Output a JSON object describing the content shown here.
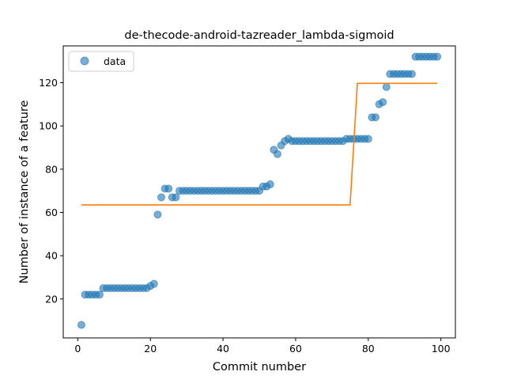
{
  "chart_data": {
    "type": "scatter",
    "title": "de-thecode-android-tazreader_lambda-sigmoid",
    "xlabel": "Commit number",
    "ylabel": "Number of instance of a feature",
    "xlim": [
      -4,
      104
    ],
    "ylim": [
      2,
      137
    ],
    "xticks": [
      0,
      20,
      40,
      60,
      80,
      100
    ],
    "yticks": [
      20,
      40,
      60,
      80,
      100,
      120
    ],
    "grid": false,
    "legend": {
      "position": "upper-left",
      "entries": [
        "data"
      ]
    },
    "colors": {
      "data": "#1f77b4",
      "fit": "#ff7f0e"
    },
    "series": [
      {
        "name": "data",
        "type": "scatter",
        "x": [
          1,
          2,
          3,
          4,
          5,
          6,
          7,
          8,
          9,
          10,
          11,
          12,
          13,
          14,
          15,
          16,
          17,
          18,
          19,
          20,
          21,
          22,
          23,
          24,
          25,
          26,
          27,
          28,
          29,
          30,
          31,
          32,
          33,
          34,
          35,
          36,
          37,
          38,
          39,
          40,
          41,
          42,
          43,
          44,
          45,
          46,
          47,
          48,
          49,
          50,
          51,
          52,
          53,
          54,
          55,
          56,
          57,
          58,
          59,
          60,
          61,
          62,
          63,
          64,
          65,
          66,
          67,
          68,
          69,
          70,
          71,
          72,
          73,
          74,
          75,
          76,
          77,
          78,
          79,
          80,
          81,
          82,
          83,
          84,
          85,
          86,
          87,
          88,
          89,
          90,
          91,
          92,
          93,
          94,
          95,
          96,
          97,
          98,
          99
        ],
        "y": [
          8,
          22,
          22,
          22,
          22,
          22,
          25,
          25,
          25,
          25,
          25,
          25,
          25,
          25,
          25,
          25,
          25,
          25,
          25,
          26,
          27,
          59,
          67,
          71,
          71,
          67,
          67,
          70,
          70,
          70,
          70,
          70,
          70,
          70,
          70,
          70,
          70,
          70,
          70,
          70,
          70,
          70,
          70,
          70,
          70,
          70,
          70,
          70,
          70,
          70,
          72,
          72,
          73,
          89,
          87,
          91,
          93,
          94,
          93,
          93,
          93,
          93,
          93,
          93,
          93,
          93,
          93,
          93,
          93,
          93,
          93,
          93,
          93,
          94,
          94,
          94,
          94,
          94,
          94,
          94,
          104,
          104,
          110,
          111,
          118,
          124,
          124,
          124,
          124,
          124,
          124,
          124,
          132,
          132,
          132,
          132,
          132,
          132,
          132
        ]
      },
      {
        "name": "",
        "type": "line",
        "x": [
          1,
          75,
          77,
          99
        ],
        "y": [
          63.5,
          63.5,
          119.7,
          119.7
        ]
      }
    ]
  }
}
